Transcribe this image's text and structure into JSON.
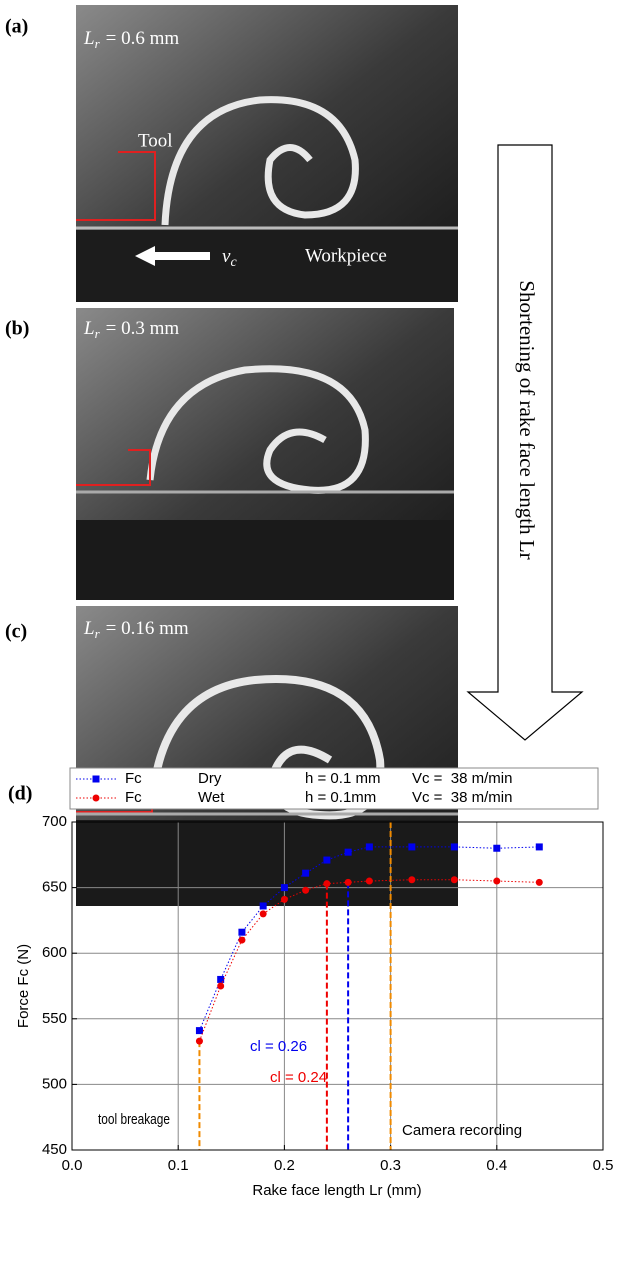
{
  "photos": [
    {
      "label": "(a)",
      "symbol": "L",
      "subscript": "r",
      "setting": "= 0.6 mm",
      "tool": "Tool",
      "velocity_symbol": "v",
      "velocity_subscript": "c",
      "workpiece": "Workpiece"
    },
    {
      "label": "(b)",
      "symbol": "L",
      "subscript": "r",
      "setting": "= 0.3 mm"
    },
    {
      "label": "(c)",
      "symbol": "L",
      "subscript": "r",
      "setting": "= 0.16 mm"
    }
  ],
  "arrow_label": "Shortening of rake face length Lr",
  "chart_data": {
    "type": "line",
    "panel_label": "(d)",
    "x_label": "Rake face length Lr (mm)",
    "y_label": "Force Fc (N)",
    "xlim": [
      0,
      0.5
    ],
    "xticks": [
      {
        "value": 0,
        "label": "0.0"
      },
      0.1,
      0.2,
      0.3,
      0.4,
      0.5
    ],
    "ylim": [
      450,
      700
    ],
    "yticks": [
      450,
      500,
      550,
      600,
      650,
      700
    ],
    "grid": true,
    "x": [
      0.12,
      0.14,
      0.16,
      0.18,
      0.2,
      0.22,
      0.24,
      0.26,
      0.28,
      0.32,
      0.36,
      0.4,
      0.44
    ],
    "series": [
      {
        "name": "Fc",
        "condition": "Dry",
        "feed": "h = 0.1 mm",
        "speed": "Vc =  38 m/min",
        "color": "#0000ee",
        "marker": "square",
        "values": [
          541,
          580,
          616,
          636,
          650,
          661,
          671,
          677,
          681,
          681,
          681,
          680,
          681
        ]
      },
      {
        "name": "Fc",
        "condition": "Wet",
        "feed": "h = 0.1mm",
        "speed": "Vc =  38 m/min",
        "color": "#ee0000",
        "marker": "circle",
        "values": [
          533,
          575,
          610,
          630,
          641,
          648,
          653,
          654,
          655,
          656,
          656,
          655,
          654
        ]
      }
    ],
    "vlines": [
      {
        "x": 0.12,
        "color": "#f08a00",
        "label": "tool breakage"
      },
      {
        "x": 0.24,
        "color": "#ee0000",
        "label": "cl = 0.24"
      },
      {
        "x": 0.26,
        "color": "#0000ee",
        "label": "cl = 0.26"
      },
      {
        "x": 0.3,
        "color": "#f08a00",
        "label": "Camera recording"
      }
    ]
  }
}
